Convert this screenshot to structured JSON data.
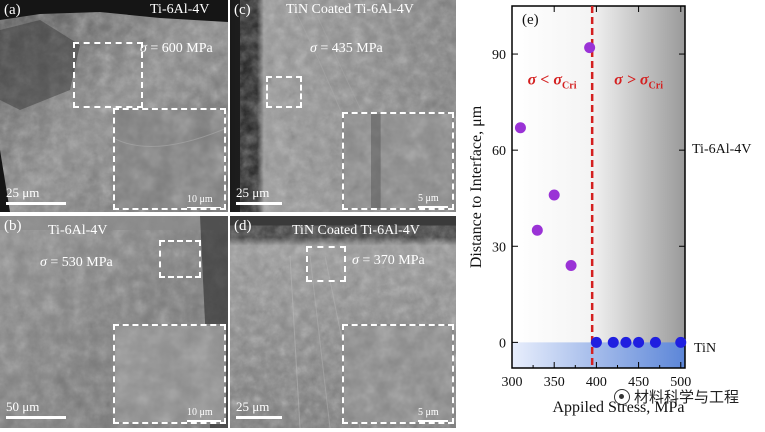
{
  "panels": {
    "a": {
      "label": "(a)",
      "title": "Ti-6Al-4V",
      "stress_value": "= 600 MPa",
      "scalebar": "25 μm",
      "inset_scalebar": "10 μm"
    },
    "b": {
      "label": "(b)",
      "title": "Ti-6Al-4V",
      "stress_value": "= 530 MPa",
      "scalebar": "50 μm",
      "inset_scalebar": "10 μm"
    },
    "c": {
      "label": "(c)",
      "title": "TiN Coated Ti-6Al-4V",
      "stress_value": "= 435 MPa",
      "scalebar": "25 μm",
      "inset_scalebar": "5 μm"
    },
    "d": {
      "label": "(d)",
      "title": "TiN Coated Ti-6Al-4V",
      "stress_value": "= 370 MPa",
      "scalebar": "25 μm",
      "inset_scalebar": "5 μm"
    },
    "sigma_symbol": "σ"
  },
  "side_labels": {
    "top": "Ti-6Al-4V",
    "bottom": "TiN"
  },
  "watermark": "材料科学与工程",
  "colors": {
    "purple": "#9a32d6",
    "blue": "#1f1fe0",
    "critical_line": "#d42020",
    "region_text": "#d42020"
  },
  "chart_data": {
    "type": "scatter",
    "panel_label": "(e)",
    "xlabel": "Appiled Stress, MPa",
    "ylabel": "Distance to Interface, μm",
    "xlim": [
      300,
      505
    ],
    "ylim": [
      -8,
      105
    ],
    "xticks": [
      300,
      350,
      400,
      450,
      500
    ],
    "xtick_labels": [
      "300",
      "350",
      "400",
      "450",
      "500"
    ],
    "xminor": [
      325,
      375,
      425,
      475
    ],
    "yticks": [
      0,
      30,
      60,
      90
    ],
    "ytick_labels": [
      "0",
      "30",
      "60",
      "90"
    ],
    "critical_stress": 395,
    "region_left_label": {
      "sigma": "σ",
      "op": "<",
      "sub_sigma": "σ",
      "sub": "Cri"
    },
    "region_right_label": {
      "sigma": "σ",
      "op": ">",
      "sub_sigma": "σ",
      "sub": "Cri"
    },
    "series": [
      {
        "name": "Ti-6Al-4V",
        "color": "#9a32d6",
        "points": [
          [
            310,
            67
          ],
          [
            330,
            35
          ],
          [
            350,
            46
          ],
          [
            370,
            24
          ],
          [
            392,
            92
          ]
        ]
      },
      {
        "name": "TiN",
        "color": "#1f1fe0",
        "points": [
          [
            400,
            0
          ],
          [
            420,
            0
          ],
          [
            435,
            0
          ],
          [
            450,
            0
          ],
          [
            470,
            0
          ],
          [
            500,
            0
          ]
        ]
      }
    ]
  }
}
